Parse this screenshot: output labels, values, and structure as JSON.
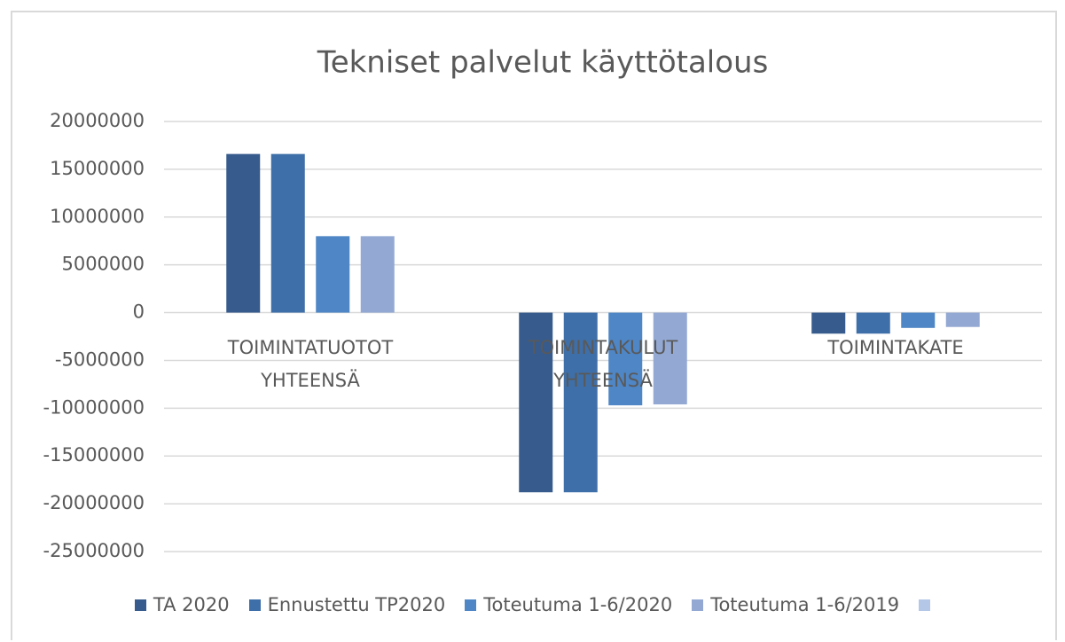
{
  "chart_data": {
    "type": "bar",
    "title": "Tekniset palvelut käyttötalous",
    "categories": [
      "TOIMINTATUOTOT YHTEENSÄ",
      "TOIMINTAKULUT YHTEENSÄ",
      "TOIMINTAKATE"
    ],
    "series": [
      {
        "name": "TA 2020",
        "color": "#375b8c",
        "values": [
          16600000,
          -18800000,
          -2200000
        ]
      },
      {
        "name": "Ennustettu TP2020",
        "color": "#3f6fa8",
        "values": [
          16600000,
          -18800000,
          -2200000
        ]
      },
      {
        "name": "Toteutuma 1-6/2020",
        "color": "#4f86c6",
        "values": [
          8000000,
          -9700000,
          -1600000
        ]
      },
      {
        "name": "Toteutuma 1-6/2019",
        "color": "#93a9d4",
        "values": [
          8000000,
          -9600000,
          -1500000
        ]
      }
    ],
    "ylim": [
      -25000000,
      20000000
    ],
    "yticks": [
      -25000000,
      -20000000,
      -15000000,
      -10000000,
      -5000000,
      0,
      5000000,
      10000000,
      15000000,
      20000000
    ],
    "grid": true,
    "legend": "bottom"
  }
}
